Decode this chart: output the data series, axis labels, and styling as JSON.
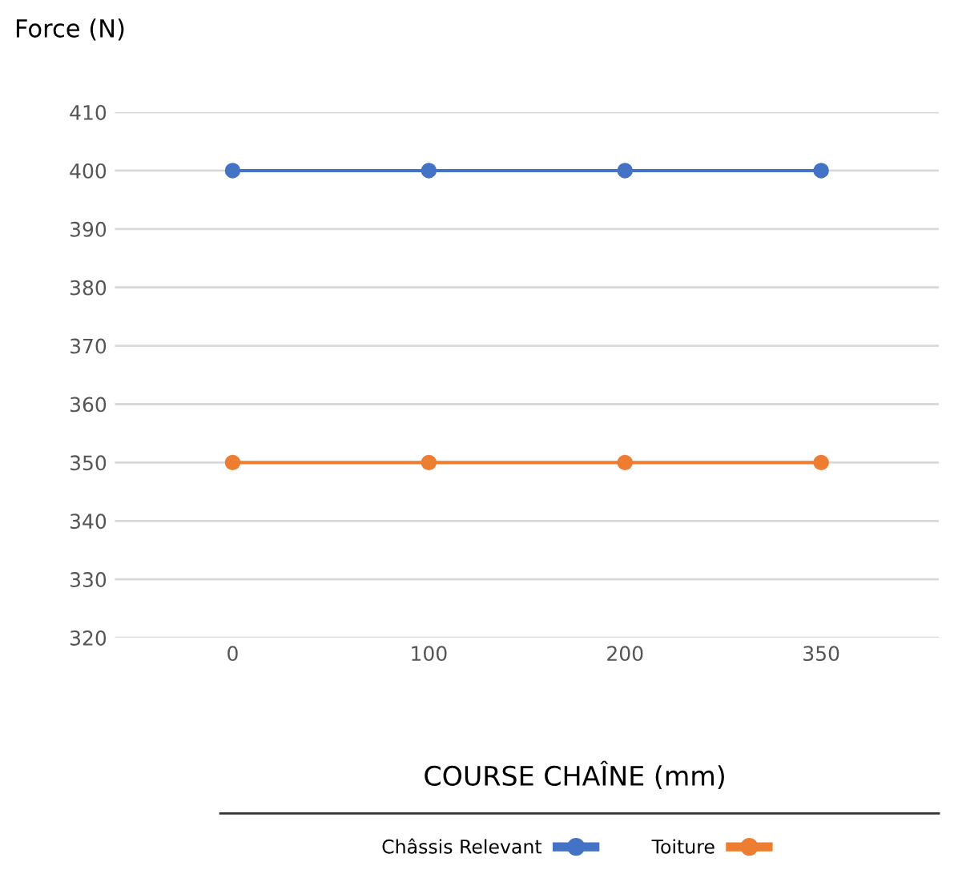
{
  "chart_data": {
    "type": "line",
    "ylabel": "Force (N)",
    "xlabel": "COURSE CHAÎNE (mm)",
    "categories": [
      "0",
      "100",
      "200",
      "350"
    ],
    "series": [
      {
        "name": "Châssis Relevant",
        "color": "#4472c4",
        "values": [
          400,
          400,
          400,
          400
        ]
      },
      {
        "name": "Toiture",
        "color": "#ed7d31",
        "values": [
          350,
          350,
          350,
          350
        ]
      }
    ],
    "ylim": [
      320,
      410
    ],
    "yticks": [
      320,
      330,
      340,
      350,
      360,
      370,
      380,
      390,
      400,
      410
    ],
    "grid": "y",
    "legend": "bottom",
    "marker": "circle",
    "line_style": "solid"
  }
}
